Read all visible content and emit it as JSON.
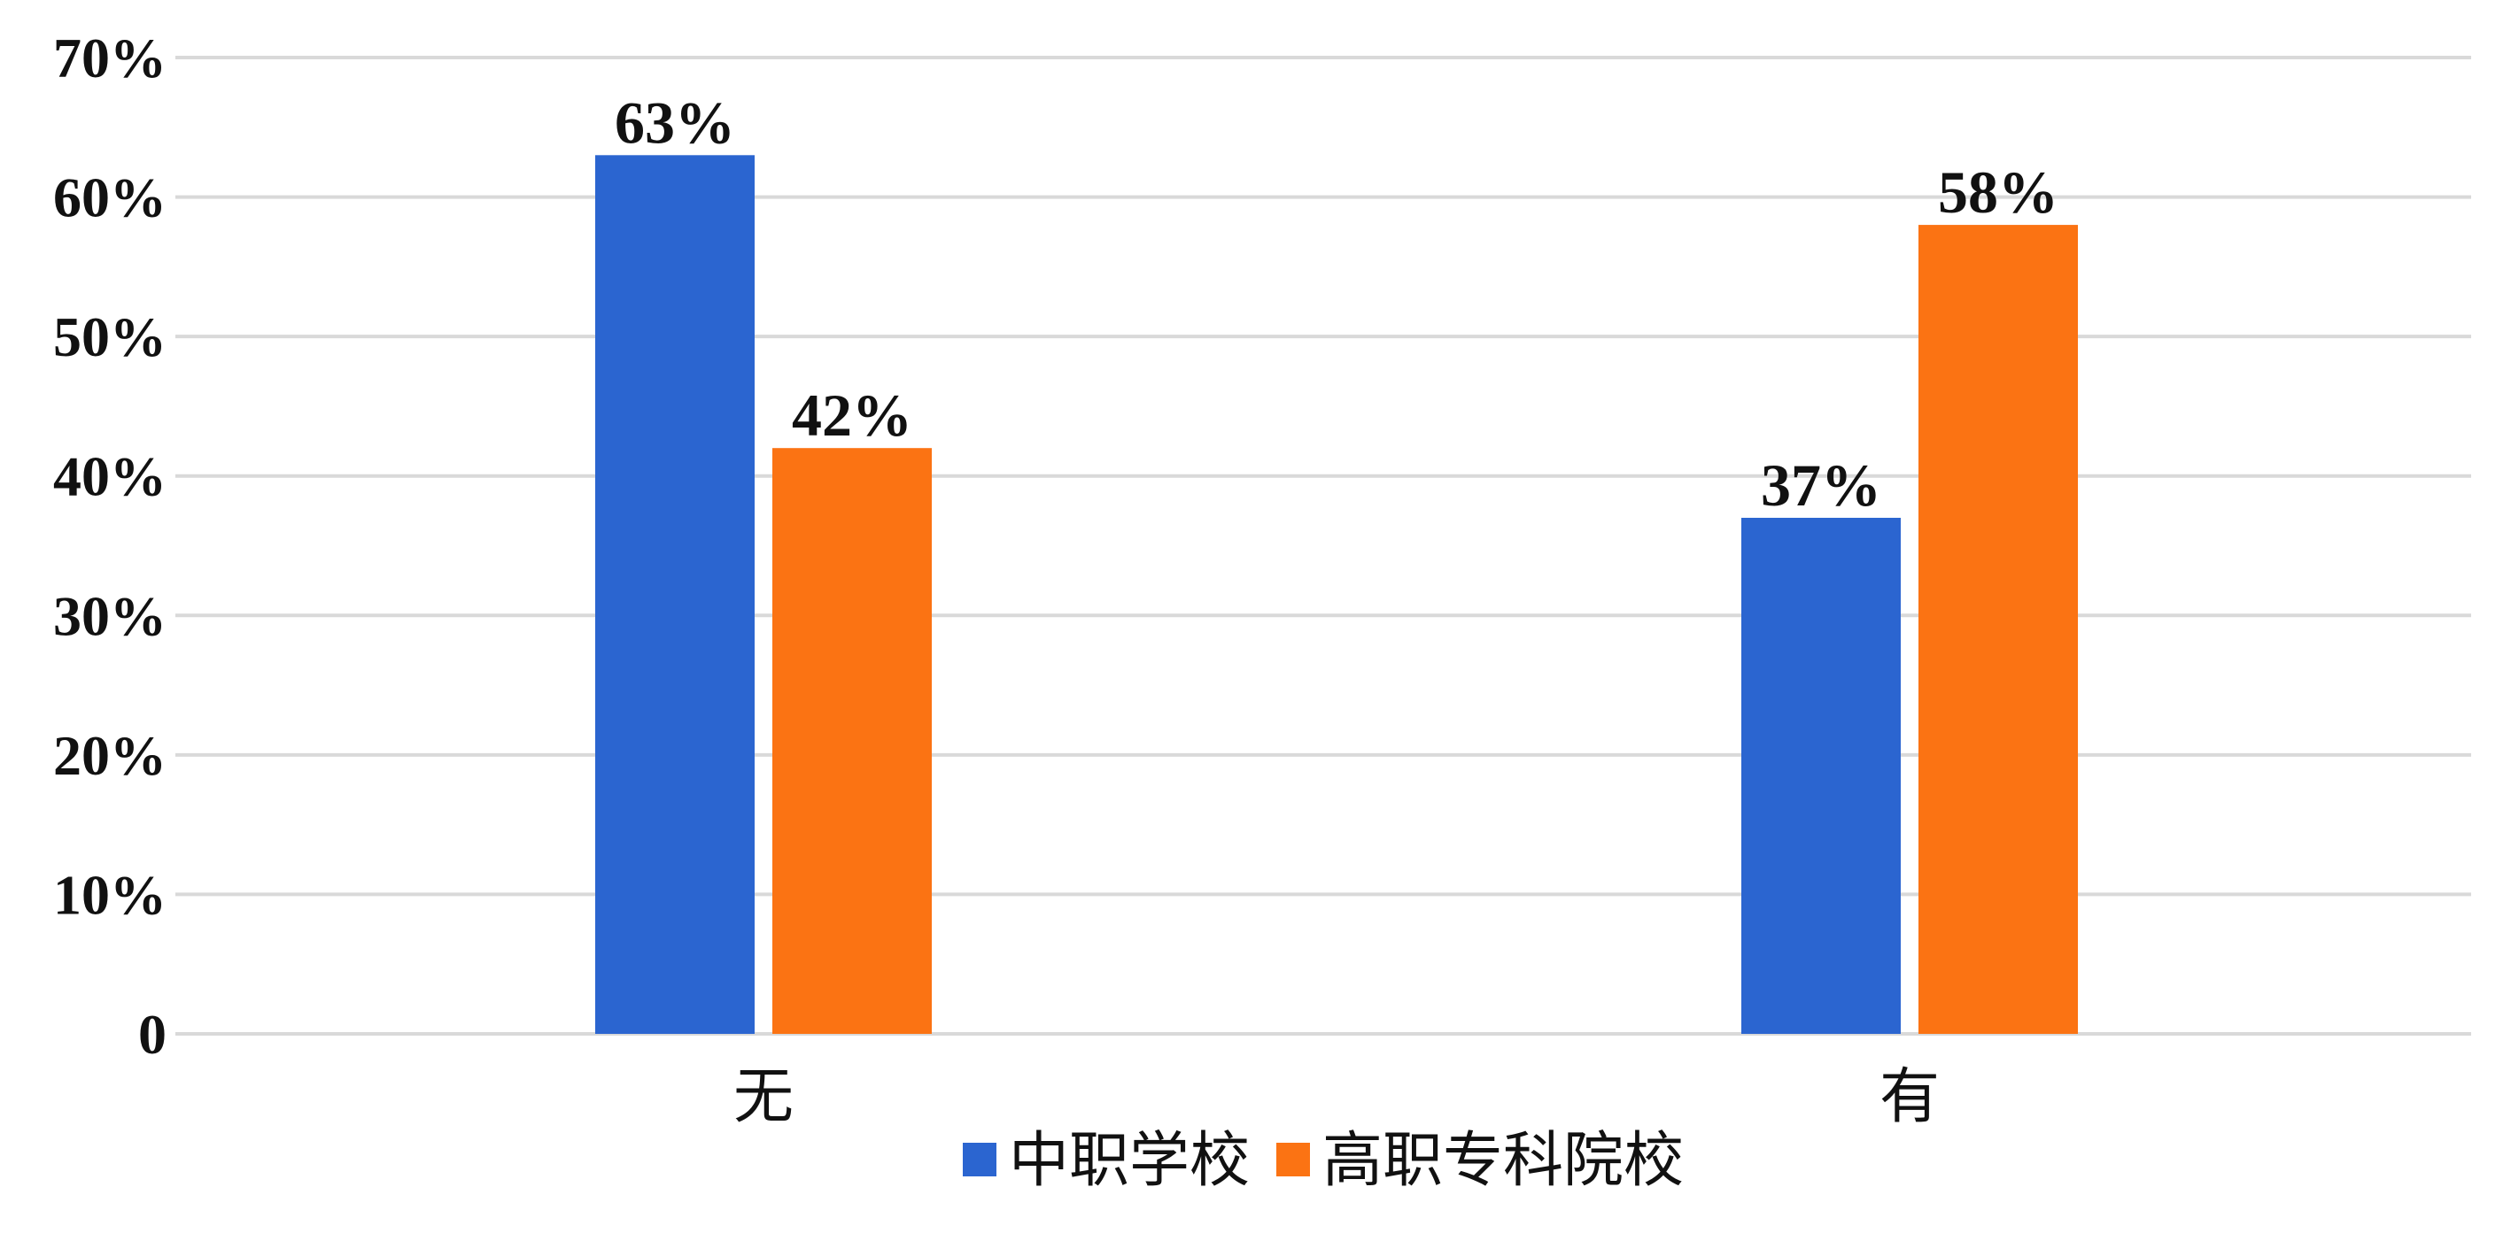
{
  "chart_data": {
    "type": "bar",
    "title": "",
    "xlabel": "",
    "ylabel": "",
    "categories": [
      "无",
      "有"
    ],
    "series": [
      {
        "name": "中职学校",
        "values": [
          63,
          37
        ],
        "labels": [
          "63%",
          "37%"
        ],
        "color": "#2b65d0"
      },
      {
        "name": "高职专科院校",
        "values": [
          42,
          58
        ],
        "labels": [
          "42%",
          "58%"
        ],
        "color": "#fb7313"
      }
    ],
    "ylim": [
      0,
      70
    ],
    "yticks": [
      0,
      10,
      20,
      30,
      40,
      50,
      60,
      70
    ],
    "ytick_labels": [
      "0",
      "10%",
      "20%",
      "30%",
      "40%",
      "50%",
      "60%",
      "70%"
    ],
    "grid": true,
    "grid_color": "#d9d9d9",
    "legend_position": "bottom"
  }
}
